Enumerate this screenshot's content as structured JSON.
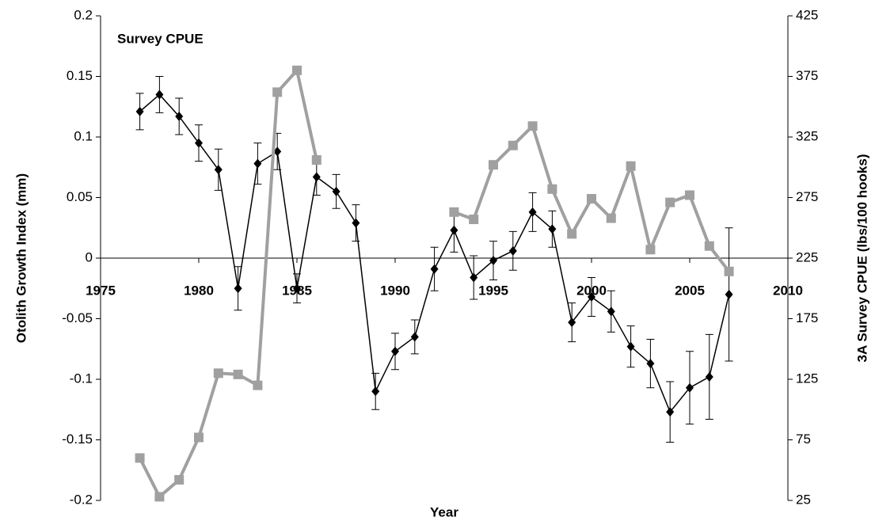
{
  "chart_data": {
    "type": "line",
    "annotation": "Survey CPUE",
    "xlabel": "Year",
    "ylabel": "Otolith Growth Index (mm)",
    "y2label": "3A Survey CPUE (lbs/100 hooks)",
    "x": [
      1977,
      1978,
      1979,
      1980,
      1981,
      1982,
      1983,
      1984,
      1985,
      1986,
      1987,
      1988,
      1989,
      1990,
      1991,
      1992,
      1993,
      1994,
      1995,
      1996,
      1997,
      1998,
      1999,
      2000,
      2001,
      2002,
      2003,
      2004,
      2005,
      2006,
      2007
    ],
    "xlim": [
      1975,
      2010
    ],
    "xticks": [
      1975,
      1980,
      1985,
      1990,
      1995,
      2000,
      2005,
      2010
    ],
    "ylim": [
      -0.2,
      0.2
    ],
    "yticks": [
      -0.2,
      -0.15,
      -0.1,
      -0.05,
      0,
      0.05,
      0.1,
      0.15,
      0.2
    ],
    "y2lim": [
      25,
      425
    ],
    "y2ticks": [
      25,
      75,
      125,
      175,
      225,
      275,
      325,
      375,
      425
    ],
    "series": [
      {
        "color": "#000000",
        "axis": "y",
        "values": [
          0.121,
          0.135,
          0.117,
          0.095,
          0.073,
          -0.025,
          0.078,
          0.088,
          -0.025,
          0.067,
          0.055,
          0.029,
          -0.11,
          -0.077,
          -0.065,
          -0.009,
          0.023,
          -0.016,
          -0.002,
          0.006,
          0.038,
          0.024,
          -0.053,
          -0.032,
          -0.044,
          -0.073,
          -0.087,
          -0.127,
          -0.107,
          -0.098,
          -0.03
        ],
        "errors": [
          0.015,
          0.015,
          0.015,
          0.015,
          0.017,
          0.018,
          0.017,
          0.015,
          0.012,
          0.015,
          0.014,
          0.015,
          0.015,
          0.015,
          0.014,
          0.018,
          0.018,
          0.018,
          0.016,
          0.016,
          0.016,
          0.015,
          0.016,
          0.016,
          0.017,
          0.017,
          0.02,
          0.025,
          0.03,
          0.035,
          0.055
        ]
      },
      {
        "color": "#a0a0a0",
        "axis": "y2",
        "values": [
          60,
          28,
          42,
          77,
          130,
          129,
          120,
          362,
          380,
          306,
          null,
          null,
          null,
          null,
          null,
          null,
          263,
          257,
          302,
          318,
          334,
          282,
          245,
          274,
          258,
          301,
          232,
          271,
          277,
          235,
          214
        ]
      }
    ]
  }
}
